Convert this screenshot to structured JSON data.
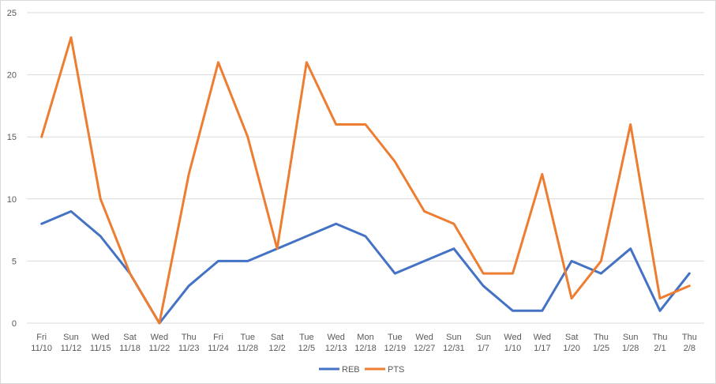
{
  "chart_data": {
    "type": "line",
    "title": "",
    "xlabel": "",
    "ylabel": "",
    "ylim": [
      0,
      25
    ],
    "yticks": [
      0,
      5,
      10,
      15,
      20,
      25
    ],
    "grid": "horizontal",
    "legend_position": "bottom",
    "categories": [
      [
        "Fri",
        "11/10"
      ],
      [
        "Sun",
        "11/12"
      ],
      [
        "Wed",
        "11/15"
      ],
      [
        "Sat",
        "11/18"
      ],
      [
        "Wed",
        "11/22"
      ],
      [
        "Thu",
        "11/23"
      ],
      [
        "Fri",
        "11/24"
      ],
      [
        "Tue",
        "11/28"
      ],
      [
        "Sat",
        "12/2"
      ],
      [
        "Tue",
        "12/5"
      ],
      [
        "Wed",
        "12/13"
      ],
      [
        "Mon",
        "12/18"
      ],
      [
        "Tue",
        "12/19"
      ],
      [
        "Wed",
        "12/27"
      ],
      [
        "Sun",
        "12/31"
      ],
      [
        "Sun",
        "1/7"
      ],
      [
        "Wed",
        "1/10"
      ],
      [
        "Wed",
        "1/17"
      ],
      [
        "Sat",
        "1/20"
      ],
      [
        "Thu",
        "1/25"
      ],
      [
        "Sun",
        "1/28"
      ],
      [
        "Thu",
        "2/1"
      ],
      [
        "Thu",
        "2/8"
      ]
    ],
    "series": [
      {
        "name": "REB",
        "color": "#4472c4",
        "values": [
          8,
          9,
          7,
          4,
          0,
          3,
          5,
          5,
          6,
          7,
          8,
          7,
          4,
          5,
          6,
          3,
          1,
          1,
          5,
          4,
          6,
          1,
          4
        ]
      },
      {
        "name": "PTS",
        "color": "#ed7d31",
        "values": [
          15,
          23,
          10,
          4,
          0,
          12,
          21,
          15,
          6,
          21,
          16,
          16,
          13,
          9,
          8,
          4,
          4,
          12,
          2,
          5,
          16,
          2,
          3
        ]
      }
    ]
  }
}
